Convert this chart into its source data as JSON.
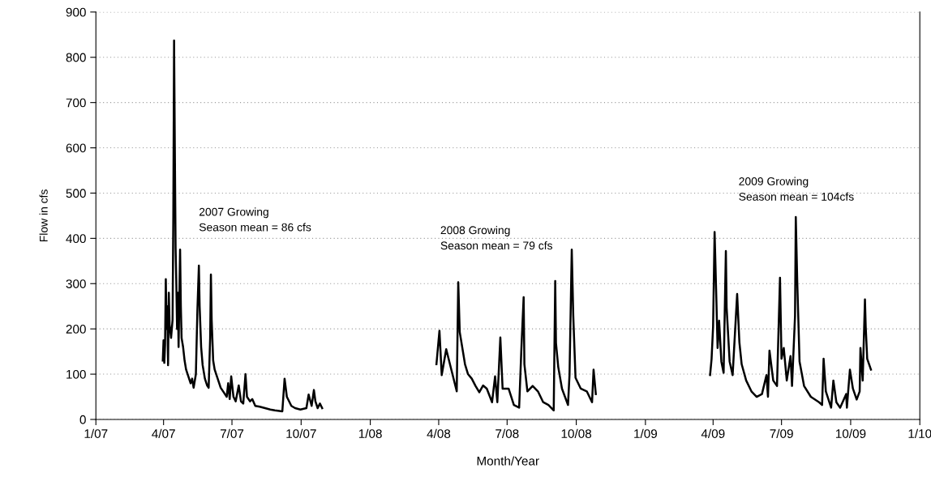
{
  "chart_data": {
    "type": "line",
    "xlabel": "Month/Year",
    "ylabel": "Flow in cfs",
    "annotations": [
      "2007 Growing\nSeason mean = 86 cfs",
      "2008 Growing\nSeason mean = 79 cfs",
      "2009 Growing\nSeason mean = 104cfs"
    ],
    "xlim": [
      "2007-01-01",
      "2010-01-01"
    ],
    "xticks": [
      {
        "value": "2007-01-01",
        "label": "1/07"
      },
      {
        "value": "2007-04-01",
        "label": "4/07"
      },
      {
        "value": "2007-07-01",
        "label": "7/07"
      },
      {
        "value": "2007-10-01",
        "label": "10/07"
      },
      {
        "value": "2008-01-01",
        "label": "1/08"
      },
      {
        "value": "2008-04-01",
        "label": "4/08"
      },
      {
        "value": "2008-07-01",
        "label": "7/08"
      },
      {
        "value": "2008-10-01",
        "label": "10/08"
      },
      {
        "value": "2009-01-01",
        "label": "1/09"
      },
      {
        "value": "2009-04-01",
        "label": "4/09"
      },
      {
        "value": "2009-07-01",
        "label": "7/09"
      },
      {
        "value": "2009-10-01",
        "label": "10/09"
      },
      {
        "value": "2010-01-01",
        "label": "1/10"
      }
    ],
    "ylim": [
      0,
      900
    ],
    "yticks": [
      0,
      100,
      200,
      300,
      400,
      500,
      600,
      700,
      800,
      900
    ],
    "grid": "y",
    "line_style": "solid",
    "series": [
      {
        "color": "#000000",
        "x": [
          "2007-03-31",
          "2007-04-01",
          "2007-04-02",
          "2007-04-03",
          "2007-04-04",
          "2007-04-05",
          "2007-04-06",
          "2007-04-07",
          "2007-04-08",
          "2007-04-09",
          "2007-04-11",
          "2007-04-13",
          "2007-04-14",
          "2007-04-15",
          "2007-04-16",
          "2007-04-17",
          "2007-04-18",
          "2007-04-19",
          "2007-04-20",
          "2007-04-21",
          "2007-04-23",
          "2007-04-24",
          "2007-04-25",
          "2007-04-27",
          "2007-04-29",
          "2007-05-01",
          "2007-05-04",
          "2007-05-07",
          "2007-05-09",
          "2007-05-11",
          "2007-05-14",
          "2007-05-16",
          "2007-05-18",
          "2007-05-19",
          "2007-05-21",
          "2007-05-23",
          "2007-05-26",
          "2007-05-29",
          "2007-05-31",
          "2007-06-02",
          "2007-06-03",
          "2007-06-04",
          "2007-06-06",
          "2007-06-08",
          "2007-06-12",
          "2007-06-16",
          "2007-06-20",
          "2007-06-24",
          "2007-06-26",
          "2007-06-28",
          "2007-06-30",
          "2007-07-03",
          "2007-07-06",
          "2007-07-10",
          "2007-07-13",
          "2007-07-16",
          "2007-07-19",
          "2007-07-21",
          "2007-07-25",
          "2007-07-28",
          "2007-08-01",
          "2007-08-07",
          "2007-08-14",
          "2007-08-21",
          "2007-08-27",
          "2007-09-06",
          "2007-09-09",
          "2007-09-12",
          "2007-09-18",
          "2007-09-23",
          "2007-09-30",
          "2007-10-08",
          "2007-10-11",
          "2007-10-15",
          "2007-10-18",
          "2007-10-20",
          "2007-10-23",
          "2007-10-26",
          "2007-10-29",
          "2008-01-01",
          "2008-03-29",
          "2008-04-02",
          "2008-04-05",
          "2008-04-11",
          "2008-04-25",
          "2008-04-27",
          "2008-04-29",
          "2008-05-06",
          "2008-05-10",
          "2008-05-15",
          "2008-05-20",
          "2008-05-25",
          "2008-05-30",
          "2008-06-04",
          "2008-06-11",
          "2008-06-15",
          "2008-06-18",
          "2008-06-22",
          "2008-06-25",
          "2008-07-03",
          "2008-07-10",
          "2008-07-17",
          "2008-07-20",
          "2008-07-23",
          "2008-07-24",
          "2008-07-28",
          "2008-08-04",
          "2008-08-11",
          "2008-08-18",
          "2008-08-25",
          "2008-09-01",
          "2008-09-03",
          "2008-09-04",
          "2008-09-07",
          "2008-09-12",
          "2008-09-20",
          "2008-09-22",
          "2008-09-25",
          "2008-09-27",
          "2008-09-30",
          "2008-10-07",
          "2008-10-15",
          "2008-10-22",
          "2008-10-24",
          "2008-10-27",
          "2009-01-01",
          "2009-03-28",
          "2009-03-30",
          "2009-04-01",
          "2009-04-03",
          "2009-04-05",
          "2009-04-07",
          "2009-04-09",
          "2009-04-12",
          "2009-04-15",
          "2009-04-18",
          "2009-04-19",
          "2009-04-23",
          "2009-04-27",
          "2009-05-03",
          "2009-05-06",
          "2009-05-09",
          "2009-05-15",
          "2009-05-22",
          "2009-05-29",
          "2009-06-05",
          "2009-06-11",
          "2009-06-13",
          "2009-06-15",
          "2009-06-20",
          "2009-06-25",
          "2009-06-29",
          "2009-07-01",
          "2009-07-04",
          "2009-07-08",
          "2009-07-13",
          "2009-07-15",
          "2009-07-19",
          "2009-07-20",
          "2009-07-22",
          "2009-07-24",
          "2009-07-25",
          "2009-07-31",
          "2009-08-09",
          "2009-08-20",
          "2009-08-24",
          "2009-08-26",
          "2009-08-29",
          "2009-09-05",
          "2009-09-08",
          "2009-09-12",
          "2009-09-17",
          "2009-09-25",
          "2009-09-26",
          "2009-09-30",
          "2009-10-04",
          "2009-10-09",
          "2009-10-13",
          "2009-10-14",
          "2009-10-17",
          "2009-10-20",
          "2009-10-21",
          "2009-10-23",
          "2009-10-28"
        ],
        "values": [
          130,
          175,
          125,
          165,
          310,
          200,
          250,
          120,
          280,
          210,
          180,
          220,
          450,
          837,
          600,
          380,
          300,
          200,
          280,
          160,
          375,
          250,
          180,
          160,
          130,
          110,
          95,
          80,
          90,
          70,
          100,
          240,
          340,
          250,
          160,
          120,
          90,
          75,
          70,
          180,
          320,
          220,
          130,
          110,
          90,
          70,
          60,
          50,
          80,
          45,
          95,
          50,
          40,
          75,
          40,
          35,
          100,
          50,
          40,
          45,
          30,
          28,
          25,
          22,
          20,
          18,
          90,
          50,
          30,
          25,
          22,
          25,
          55,
          30,
          65,
          40,
          25,
          35,
          25,
          null,
          122,
          196,
          98,
          155,
          62,
          303,
          193,
          122,
          100,
          90,
          74,
          60,
          75,
          68,
          38,
          95,
          38,
          181,
          68,
          68,
          32,
          26,
          157,
          270,
          122,
          62,
          74,
          62,
          38,
          32,
          20,
          306,
          169,
          116,
          68,
          32,
          98,
          375,
          229,
          92,
          68,
          62,
          38,
          110,
          56,
          null,
          98,
          134,
          205,
          414,
          288,
          158,
          218,
          128,
          103,
          372,
          247,
          128,
          98,
          277,
          170,
          122,
          86,
          62,
          50,
          56,
          98,
          50,
          152,
          86,
          74,
          313,
          134,
          158,
          86,
          140,
          74,
          229,
          447,
          301,
          187,
          128,
          74,
          50,
          38,
          32,
          134,
          62,
          26,
          86,
          38,
          26,
          56,
          26,
          110,
          68,
          44,
          62,
          158,
          86,
          265,
          205,
          134,
          110
        ]
      }
    ]
  }
}
